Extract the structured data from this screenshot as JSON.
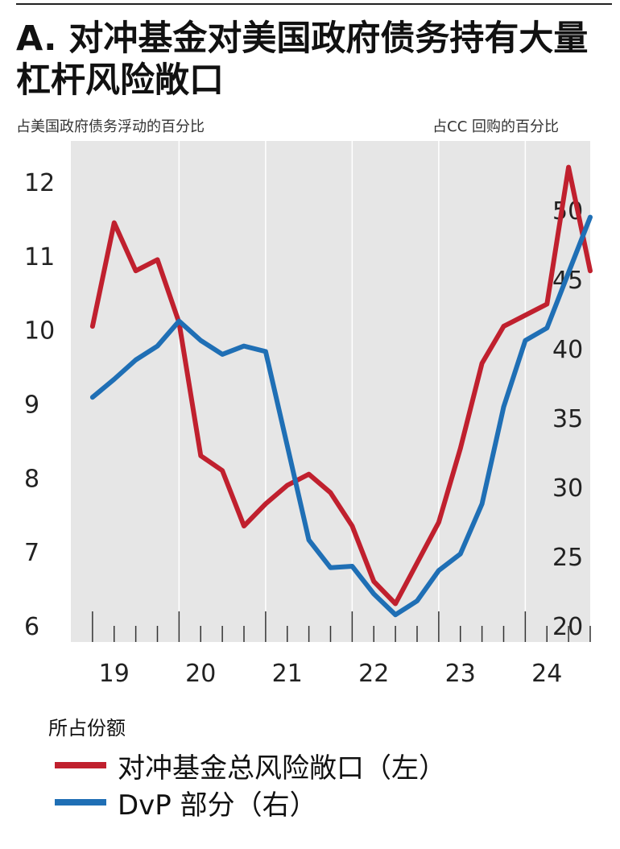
{
  "title": "A. 对冲基金对美国政府债务持有大量杠杆风险敞口",
  "left_axis_caption": "占美国政府债务浮动的百分比",
  "right_axis_caption": "占CC 回购的百分比",
  "legend_title": "所占份额",
  "legend": [
    {
      "label": "对冲基金总风险敞口（左）",
      "color": "#c0202e"
    },
    {
      "label": "DvP 部分（右）",
      "color": "#1f6fb5"
    }
  ],
  "chart_data": {
    "type": "line",
    "title": "A. 对冲基金对美国政府债务持有大量杠杆风险敞口",
    "ylabel_left": "占美国政府债务浮动的百分比",
    "ylabel_right": "占CC 回购的百分比",
    "ylim_left": [
      6,
      12.6
    ],
    "ylim_right": [
      20,
      53
    ],
    "yticks_left": [
      "6",
      "7",
      "8",
      "9",
      "10",
      "11",
      "12"
    ],
    "yticks_right": [
      "20",
      "25",
      "30",
      "35",
      "40",
      "45",
      "50"
    ],
    "xlim": [
      2018.75,
      2024.75
    ],
    "xticks": [
      {
        "label": "19",
        "x": 2019.25
      },
      {
        "label": "20",
        "x": 2020.25
      },
      {
        "label": "21",
        "x": 2021.25
      },
      {
        "label": "22",
        "x": 2022.25
      },
      {
        "label": "23",
        "x": 2023.25
      },
      {
        "label": "24",
        "x": 2024.25
      }
    ],
    "grid": true,
    "background": "#e6e6e6",
    "series": [
      {
        "name": "对冲基金总风险敞口（左）",
        "axis": "left",
        "color": "#c0202e",
        "x": [
          2019.0,
          2019.25,
          2019.5,
          2019.75,
          2020.0,
          2020.25,
          2020.5,
          2020.75,
          2021.0,
          2021.25,
          2021.5,
          2021.75,
          2022.0,
          2022.25,
          2022.5,
          2022.75,
          2023.0,
          2023.25,
          2023.5,
          2023.75,
          2024.0,
          2024.25,
          2024.5,
          2024.75
        ],
        "y": [
          10.05,
          11.45,
          10.8,
          10.95,
          10.1,
          8.3,
          8.1,
          7.35,
          7.65,
          7.9,
          8.05,
          7.8,
          7.35,
          6.6,
          6.3,
          6.85,
          7.4,
          8.4,
          9.55,
          10.05,
          10.2,
          10.35,
          12.2,
          10.8
        ]
      },
      {
        "name": "DvP 部分（右）",
        "axis": "right",
        "color": "#1f6fb5",
        "x": [
          2019.0,
          2019.25,
          2019.5,
          2019.75,
          2020.0,
          2020.25,
          2020.5,
          2020.75,
          2021.0,
          2021.25,
          2021.5,
          2021.75,
          2022.0,
          2022.25,
          2022.5,
          2022.75,
          2023.0,
          2023.25,
          2023.5,
          2023.75,
          2024.0,
          2024.25,
          2024.5,
          2024.75
        ],
        "y": [
          36.5,
          37.8,
          39.2,
          40.2,
          42.0,
          40.6,
          39.6,
          40.2,
          39.8,
          33.0,
          26.2,
          24.2,
          24.3,
          22.3,
          20.8,
          21.8,
          24.0,
          25.2,
          28.8,
          35.8,
          40.6,
          41.5,
          45.5,
          49.5
        ]
      }
    ]
  }
}
